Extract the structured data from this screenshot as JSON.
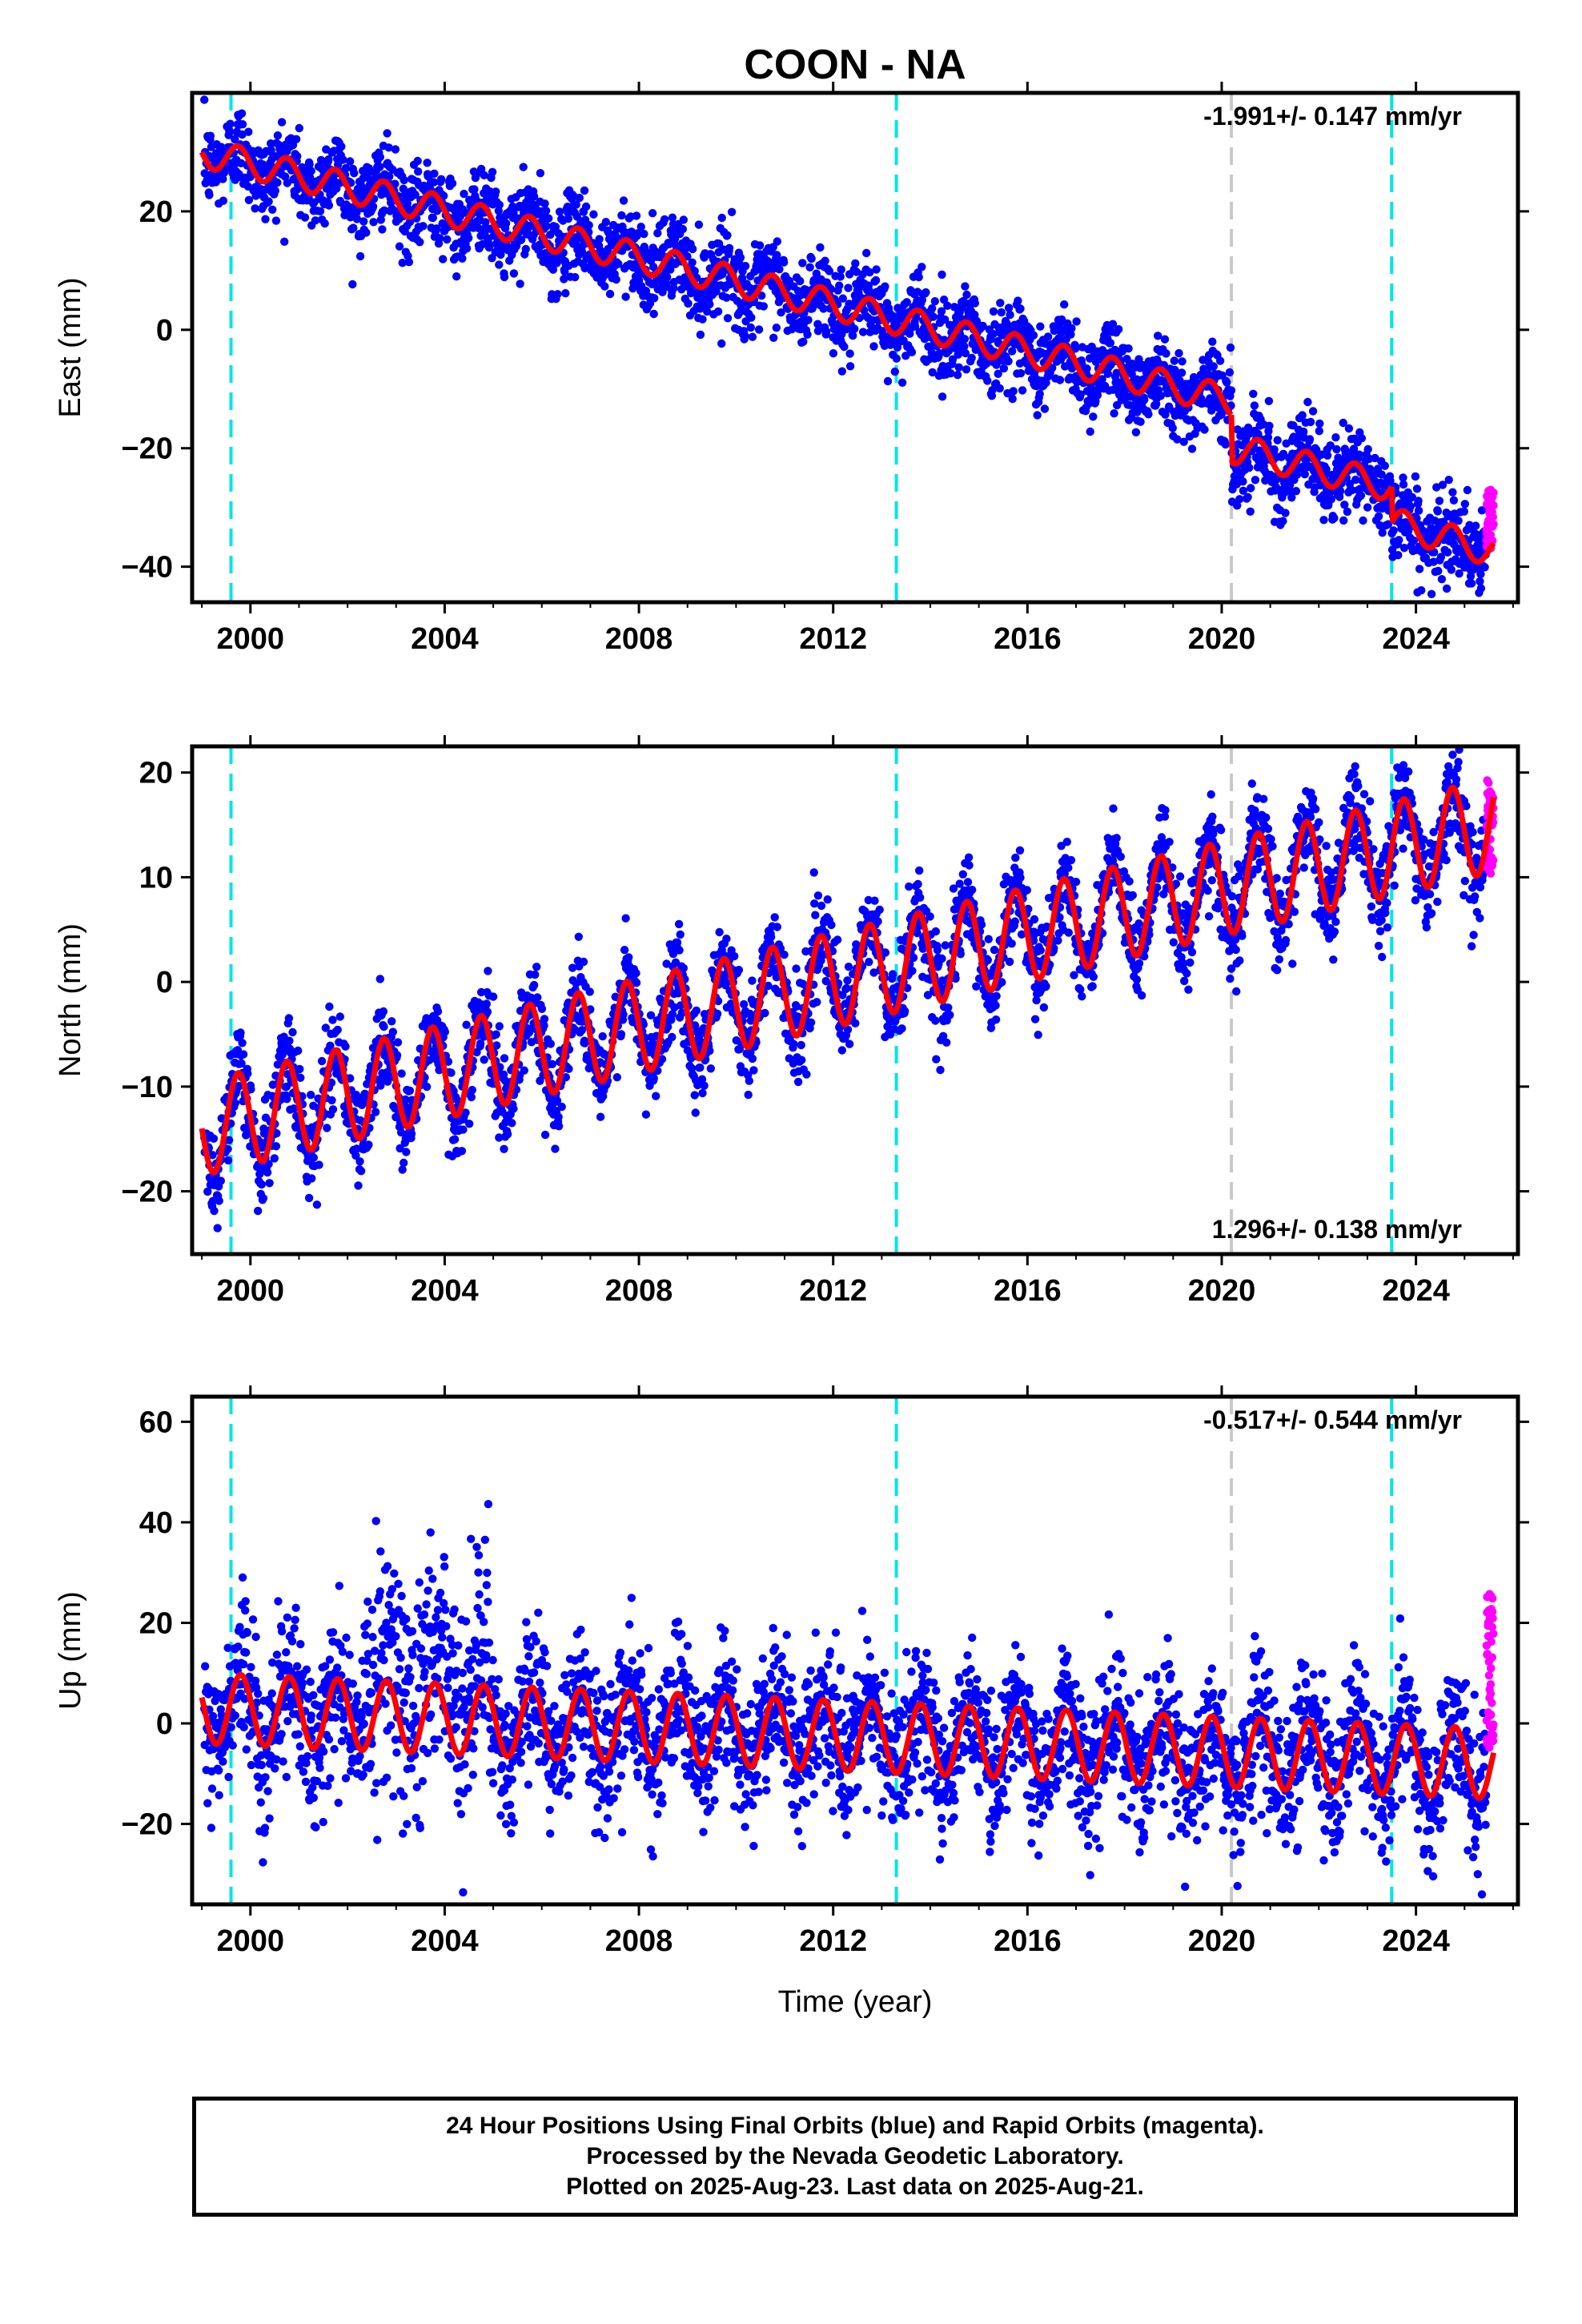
{
  "title": "COON - NA",
  "xlabel": "Time (year)",
  "colors": {
    "final": "#0000ff",
    "rapid": "#ff00ff",
    "model": "#ff0000",
    "eq_line": "#00e5e5",
    "equip_line": "#c8c8c8"
  },
  "xaxis": {
    "range": [
      1998.8,
      2026.1
    ],
    "ticks": [
      2000,
      2004,
      2008,
      2012,
      2016,
      2020,
      2024
    ]
  },
  "event_lines": [
    {
      "year": 1999.6,
      "kind": "cyan"
    },
    {
      "year": 2013.3,
      "kind": "cyan"
    },
    {
      "year": 2020.2,
      "kind": "gray"
    },
    {
      "year": 2023.5,
      "kind": "cyan"
    }
  ],
  "chart_data": [
    {
      "type": "scatter",
      "panel": "east",
      "ylabel": "East (mm)",
      "rate_label": "-1.991+/- 0.147 mm/yr",
      "rate_position": "top-right",
      "ylim": [
        -46,
        40
      ],
      "yticks": [
        -40,
        -20,
        0,
        20
      ],
      "model": {
        "segments": [
          {
            "x": [
              1999.0,
              2020.2
            ],
            "y": [
              30.0,
              -12.0
            ]
          },
          {
            "x": [
              2020.2,
              2023.5
            ],
            "y": [
              -20.0,
              -26.5
            ]
          },
          {
            "x": [
              2023.5,
              2025.6
            ],
            "y": [
              -32.5,
              -37.5
            ]
          }
        ],
        "annual_amplitude": 2.5,
        "annual_phase": 0.5
      },
      "final_orbits_scatter": 3.5,
      "rapid_orbits": {
        "x": [
          2025.45,
          2025.6
        ],
        "y_range": [
          -37,
          -27
        ]
      }
    },
    {
      "type": "scatter",
      "panel": "north",
      "ylabel": "North (mm)",
      "rate_label": "1.296+/- 0.138 mm/yr",
      "rate_position": "bottom-right",
      "ylim": [
        -26,
        22.5
      ],
      "yticks": [
        -20,
        -10,
        0,
        10,
        20
      ],
      "model": {
        "segments": [
          {
            "x": [
              1999.0,
              2025.6
            ],
            "y": [
              -14.0,
              15.0
            ]
          }
        ],
        "annual_amplitude": 4.5,
        "annual_phase": 0.5
      },
      "final_orbits_scatter": 2.2,
      "rapid_orbits": {
        "x": [
          2025.45,
          2025.6
        ],
        "y_range": [
          10,
          19.5
        ]
      }
    },
    {
      "type": "scatter",
      "panel": "up",
      "ylabel": "Up (mm)",
      "rate_label": "-0.517+/- 0.544 mm/yr",
      "rate_position": "top-right",
      "ylim": [
        -36,
        65
      ],
      "yticks": [
        -20,
        0,
        20,
        40,
        60
      ],
      "model": {
        "segments": [
          {
            "x": [
              1999.0,
              2025.6
            ],
            "y": [
              3.0,
              -8.0
            ]
          }
        ],
        "annual_amplitude": 7.0,
        "annual_phase": 0.55
      },
      "final_orbits_scatter": 7.0,
      "rapid_orbits": {
        "x": [
          2025.45,
          2025.6
        ],
        "y_range": [
          -5,
          26
        ]
      }
    }
  ],
  "footer": {
    "line1": "24 Hour Positions Using Final Orbits (blue) and Rapid Orbits (magenta).",
    "line2": "Processed by the Nevada Geodetic Laboratory.",
    "line3": "Plotted on 2025-Aug-23. Last data on 2025-Aug-21."
  }
}
